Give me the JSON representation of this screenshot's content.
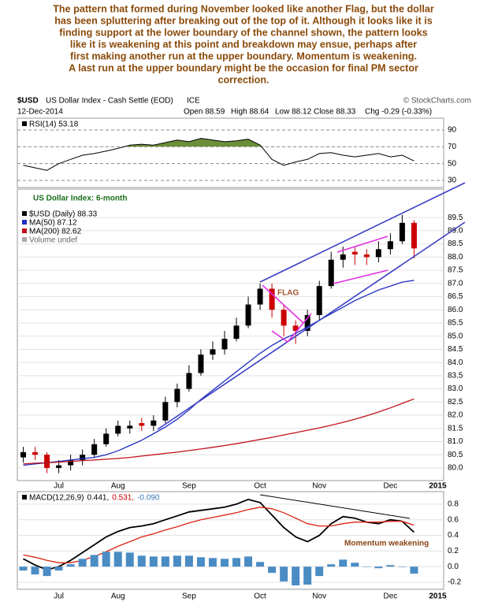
{
  "commentary": [
    "The pattern that formed during November looked like another Flag, but the dollar",
    "has been spluttering after breaking out of the top of it. Although it looks like it is",
    "finding support at the lower boundary of the channel shown, the pattern looks",
    "like it is weakening at this point and breakdown may ensue, perhaps after",
    "first making another run at the upper boundary. Momentum is weakening.",
    "A last run at the upper boundary might be the occasion for final PM sector",
    "correction."
  ],
  "header": {
    "symbol": "$USD",
    "name": "US Dollar Index - Cash Settle (EOD)",
    "exchange": "ICE",
    "credit": "© StockCharts.com",
    "date": "12-Dec-2014",
    "quote": [
      "Open 88.59",
      "High 88.64",
      "Low 88.12",
      "Close 88.33",
      "Chg -0.29 (-0.33%)"
    ]
  },
  "chart_data": [
    {
      "type": "line",
      "title": "RSI(14) 53.18",
      "color": "#000000",
      "fill_color": "#6b8e3a",
      "fill_above": 70,
      "values": [
        48,
        45,
        42,
        50,
        55,
        60,
        62,
        65,
        68,
        72,
        73,
        72,
        75,
        78,
        76,
        80,
        78,
        76,
        77,
        79,
        72,
        55,
        48,
        52,
        55,
        62,
        63,
        60,
        58,
        60,
        62,
        58,
        60,
        53.18,
        null,
        null
      ],
      "ylim": [
        21.6,
        104
      ],
      "yticks": [
        30,
        50,
        70,
        90
      ]
    },
    {
      "type": "candlestick",
      "title": "US Dollar Index: 6-month",
      "annotation": "FLAG",
      "legend_extra": "Volume undef",
      "categories": [
        null,
        null,
        null,
        "Jul",
        null,
        null,
        null,
        null,
        "Aug",
        null,
        null,
        null,
        null,
        null,
        "Sep",
        null,
        null,
        null,
        null,
        null,
        "Oct",
        null,
        null,
        null,
        null,
        "Nov",
        null,
        null,
        null,
        null,
        null,
        "Dec",
        null,
        null,
        null,
        "2015"
      ],
      "series": [
        {
          "name": "$USD (Daily) 88.33",
          "color": "#000000",
          "down_color": "#cc0000",
          "open": [
            80.4,
            80.6,
            80.5,
            80.0,
            80.1,
            80.3,
            80.5,
            80.9,
            81.3,
            81.5,
            81.7,
            81.6,
            81.8,
            82.5,
            83.0,
            83.6,
            84.3,
            84.5,
            84.9,
            85.4,
            86.2,
            86.8,
            86.0,
            85.4,
            85.2,
            85.8,
            86.9,
            87.9,
            88.2,
            88.1,
            88.0,
            88.3,
            88.6,
            89.3,
            null,
            null
          ],
          "high": [
            80.8,
            80.8,
            80.6,
            80.3,
            80.5,
            80.7,
            81.1,
            81.5,
            81.8,
            81.8,
            81.9,
            82.0,
            82.7,
            83.2,
            83.9,
            84.5,
            84.8,
            85.2,
            85.7,
            86.5,
            87.0,
            87.0,
            86.2,
            85.6,
            86.0,
            87.1,
            88.2,
            88.4,
            88.4,
            88.3,
            88.6,
            88.9,
            89.6,
            89.4,
            null,
            null
          ],
          "low": [
            80.2,
            80.3,
            79.8,
            79.8,
            79.9,
            80.1,
            80.4,
            80.8,
            81.2,
            81.3,
            81.4,
            81.4,
            81.7,
            82.3,
            82.9,
            83.5,
            84.1,
            84.3,
            84.8,
            85.3,
            86.0,
            85.7,
            85.0,
            84.7,
            85.0,
            85.6,
            86.8,
            87.6,
            87.7,
            87.7,
            87.8,
            88.1,
            88.5,
            87.95,
            null,
            null
          ],
          "close": [
            80.6,
            80.5,
            80.0,
            80.1,
            80.3,
            80.5,
            80.9,
            81.3,
            81.6,
            81.6,
            81.6,
            81.8,
            82.5,
            83.0,
            83.6,
            84.3,
            84.5,
            84.9,
            85.4,
            86.2,
            86.8,
            86.0,
            85.4,
            85.2,
            85.8,
            86.9,
            87.9,
            88.1,
            88.1,
            88.0,
            88.3,
            88.6,
            89.3,
            88.33,
            null,
            null
          ]
        },
        {
          "name": "MA(50) 87.12",
          "color": "#1f2fbf",
          "values": [
            80.1,
            80.15,
            80.2,
            80.25,
            80.3,
            80.35,
            80.4,
            80.5,
            80.65,
            80.85,
            81.05,
            81.3,
            81.55,
            81.85,
            82.2,
            82.6,
            82.95,
            83.3,
            83.65,
            84.0,
            84.35,
            84.65,
            84.9,
            85.1,
            85.35,
            85.6,
            85.85,
            86.1,
            86.35,
            86.55,
            86.75,
            86.9,
            87.05,
            87.12,
            null,
            null
          ]
        },
        {
          "name": "MA(200) 82.62",
          "color": "#c0101a",
          "values": [
            80.15,
            80.18,
            80.2,
            80.22,
            80.25,
            80.28,
            80.3,
            80.33,
            80.36,
            80.4,
            80.45,
            80.5,
            80.55,
            80.6,
            80.66,
            80.72,
            80.78,
            80.85,
            80.92,
            81.0,
            81.08,
            81.16,
            81.25,
            81.34,
            81.43,
            81.52,
            81.62,
            81.73,
            81.85,
            81.98,
            82.12,
            82.28,
            82.45,
            82.62,
            null,
            null
          ]
        }
      ],
      "ylim": [
        79.52,
        90.58
      ],
      "yticks": [
        {
          "value": 80,
          "label": "80.0"
        },
        80.5,
        {
          "value": 81,
          "label": "81.0"
        },
        81.5,
        {
          "value": 82,
          "label": "82.0"
        },
        82.5,
        {
          "value": 83,
          "label": "83.0"
        },
        83.5,
        {
          "value": 84,
          "label": "84.0"
        },
        84.5,
        {
          "value": 85,
          "label": "85.0"
        },
        85.5,
        {
          "value": 86,
          "label": "86.0"
        },
        86.5,
        {
          "value": 87,
          "label": "87.0"
        },
        87.5,
        {
          "value": 88,
          "label": "88.0"
        },
        88.5,
        {
          "value": 89,
          "label": "89.0"
        },
        89.5
      ]
    },
    {
      "type": "macd",
      "annotation": "Momentum weakening",
      "legend": [
        {
          "text": "MACD(12,26,9)",
          "color": "#000000"
        },
        {
          "text": "0.441,",
          "color": "#000000"
        },
        {
          "text": "0.531,",
          "color": "#cc0000"
        },
        {
          "text": "-0.090",
          "color": "#3a78b8"
        }
      ],
      "series": [
        {
          "color": "#000000",
          "values": [
            0.1,
            0.02,
            -0.04,
            0.0,
            0.08,
            0.18,
            0.28,
            0.38,
            0.45,
            0.5,
            0.52,
            0.55,
            0.6,
            0.65,
            0.7,
            0.72,
            0.74,
            0.76,
            0.8,
            0.86,
            0.82,
            0.66,
            0.5,
            0.38,
            0.32,
            0.4,
            0.55,
            0.64,
            0.62,
            0.57,
            0.55,
            0.6,
            0.58,
            0.441,
            null,
            null
          ]
        },
        {
          "color": "#dd2211",
          "values": [
            0.15,
            0.12,
            0.08,
            0.05,
            0.05,
            0.08,
            0.13,
            0.19,
            0.26,
            0.32,
            0.38,
            0.42,
            0.47,
            0.51,
            0.56,
            0.6,
            0.63,
            0.66,
            0.69,
            0.73,
            0.76,
            0.74,
            0.69,
            0.62,
            0.55,
            0.52,
            0.52,
            0.55,
            0.57,
            0.57,
            0.57,
            0.58,
            0.58,
            0.531,
            null,
            null
          ]
        },
        {
          "color": "#4a8cc4",
          "histogram": true,
          "values": [
            -0.05,
            -0.1,
            -0.12,
            -0.05,
            0.03,
            0.1,
            0.15,
            0.19,
            0.19,
            0.18,
            0.14,
            0.13,
            0.13,
            0.14,
            0.14,
            0.12,
            0.11,
            0.1,
            0.11,
            0.13,
            0.06,
            -0.08,
            -0.19,
            -0.24,
            -0.23,
            -0.12,
            0.03,
            0.09,
            0.05,
            0.0,
            -0.02,
            0.02,
            0.0,
            -0.09,
            null,
            null
          ]
        }
      ],
      "ylim": [
        -0.29,
        0.96
      ],
      "yticks": [
        -0.2,
        {
          "value": 0,
          "label": "0.0"
        },
        0.2,
        0.4,
        0.6,
        0.8
      ]
    }
  ]
}
